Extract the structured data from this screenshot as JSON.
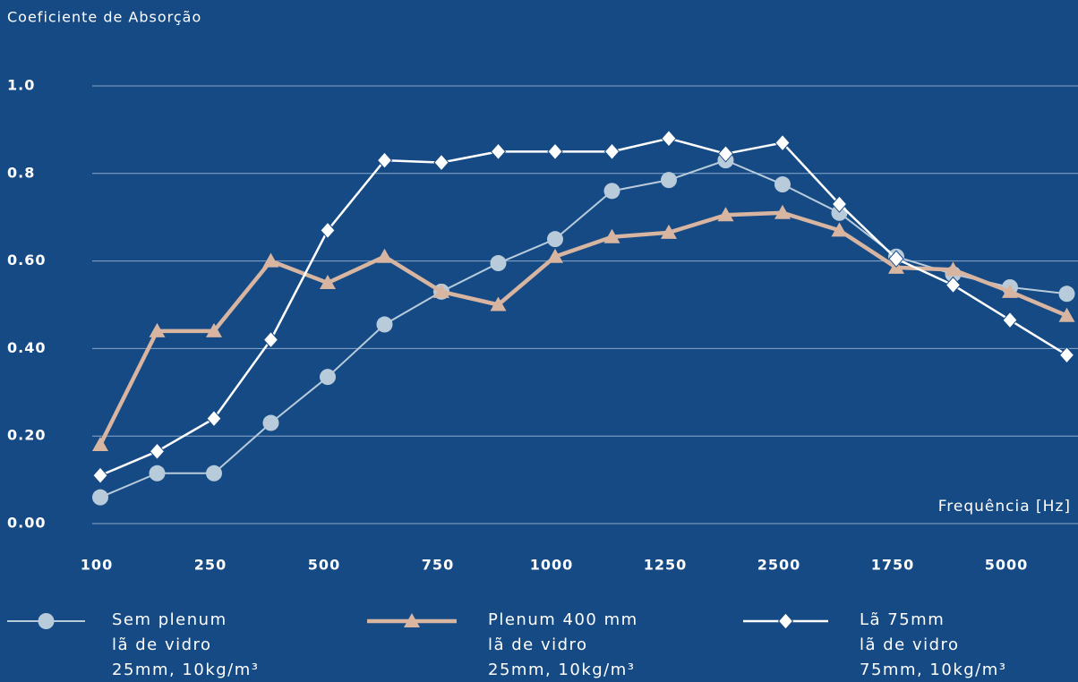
{
  "chart_data": {
    "type": "line",
    "ylabel": "Coeficiente de Absorção",
    "xlabel": "Frequência [Hz]",
    "categories": [
      "100",
      null,
      "250",
      null,
      "500",
      null,
      "750",
      null,
      "1000",
      null,
      "1250",
      null,
      "2500",
      null,
      "1750",
      null,
      "5000",
      null
    ],
    "ylim": [
      0,
      1
    ],
    "yticks": [
      {
        "value": 0,
        "label": "0.00"
      },
      {
        "value": 0.2,
        "label": "0.20"
      },
      {
        "value": 0.4,
        "label": "0.40"
      },
      {
        "value": 0.6,
        "label": "0.60"
      },
      0.8,
      {
        "value": 1,
        "label": "1.0"
      }
    ],
    "grid": true,
    "series": [
      {
        "name": "Sem plenum\nlã de vidro\n25mm, 10kg/m³",
        "color": "#b8cbdb",
        "marker": "circle",
        "values": [
          0.06,
          0.115,
          0.115,
          0.23,
          0.335,
          0.455,
          0.53,
          0.595,
          0.65,
          0.76,
          0.785,
          0.83,
          0.775,
          0.71,
          0.61,
          0.57,
          0.54,
          0.525
        ]
      },
      {
        "name": "Plenum 400 mm\nlã de vidro\n25mm, 10kg/m³",
        "color": "#d7b5a0",
        "marker": "triangle",
        "values": [
          0.18,
          0.44,
          0.44,
          0.6,
          0.55,
          0.61,
          0.53,
          0.5,
          0.61,
          0.655,
          0.665,
          0.705,
          0.71,
          0.67,
          0.585,
          0.58,
          0.53,
          0.475
        ]
      },
      {
        "name": "Lã 75mm\nlã de vidro\n75mm, 10kg/m³",
        "color": "#ffffff",
        "marker": "diamond",
        "values": [
          0.11,
          0.165,
          0.24,
          0.42,
          0.67,
          0.83,
          0.825,
          0.85,
          0.85,
          0.85,
          0.88,
          0.845,
          0.87,
          0.73,
          0.605,
          0.545,
          0.465,
          0.385
        ]
      }
    ]
  }
}
